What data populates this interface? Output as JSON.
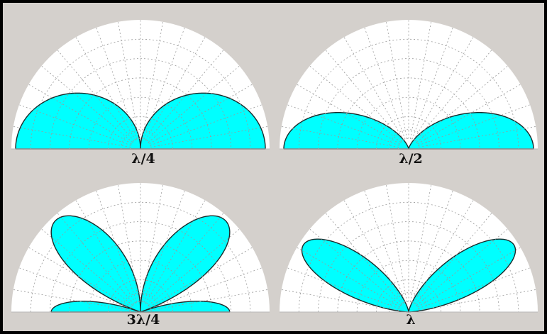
{
  "colors": {
    "background": "#d4d0cc",
    "plot_bg": "#ffffff",
    "lobe_fill": "#00ffff",
    "lobe_stroke": "#1a2a2a",
    "grid": "#9a9a9a"
  },
  "panels": [
    {
      "id": "quarter-wave",
      "label": "λ/4",
      "length_wavelengths": 0.25
    },
    {
      "id": "half-wave",
      "label": "λ/2",
      "length_wavelengths": 0.5
    },
    {
      "id": "three-quarter-wave",
      "label": "3λ/4",
      "length_wavelengths": 0.75
    },
    {
      "id": "full-wave",
      "label": "λ",
      "length_wavelengths": 1.0
    }
  ]
}
